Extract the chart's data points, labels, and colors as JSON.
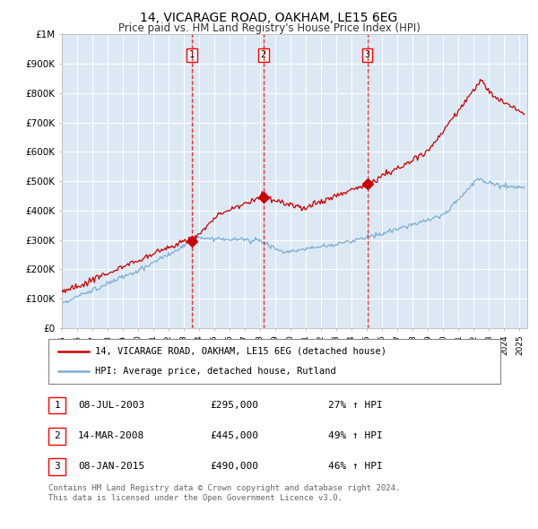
{
  "title": "14, VICARAGE ROAD, OAKHAM, LE15 6EG",
  "subtitle": "Price paid vs. HM Land Registry's House Price Index (HPI)",
  "ylim": [
    0,
    1000000
  ],
  "yticks": [
    0,
    100000,
    200000,
    300000,
    400000,
    500000,
    600000,
    700000,
    800000,
    900000,
    1000000
  ],
  "ytick_labels": [
    "£0",
    "£100K",
    "£200K",
    "£300K",
    "£400K",
    "£500K",
    "£600K",
    "£700K",
    "£800K",
    "£900K",
    "£1M"
  ],
  "xlim_start": 1995.0,
  "xlim_end": 2025.5,
  "vline_years": [
    2003.52,
    2008.21,
    2015.02
  ],
  "vline_labels": [
    "1",
    "2",
    "3"
  ],
  "red_line_color": "#cc0000",
  "blue_line_color": "#7aadd4",
  "background_color": "#dce9f5",
  "legend_label_red": "14, VICARAGE ROAD, OAKHAM, LE15 6EG (detached house)",
  "legend_label_blue": "HPI: Average price, detached house, Rutland",
  "table_rows": [
    {
      "num": "1",
      "date": "08-JUL-2003",
      "price": "£295,000",
      "hpi": "27% ↑ HPI"
    },
    {
      "num": "2",
      "date": "14-MAR-2008",
      "price": "£445,000",
      "hpi": "49% ↑ HPI"
    },
    {
      "num": "3",
      "date": "08-JAN-2015",
      "price": "£490,000",
      "hpi": "46% ↑ HPI"
    }
  ],
  "sale_points": [
    [
      2003.52,
      295000
    ],
    [
      2008.21,
      445000
    ],
    [
      2015.02,
      490000
    ]
  ],
  "footer_text": "Contains HM Land Registry data © Crown copyright and database right 2024.\nThis data is licensed under the Open Government Licence v3.0."
}
